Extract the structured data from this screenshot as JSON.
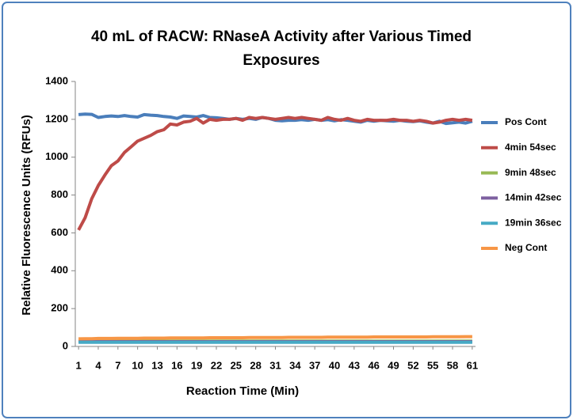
{
  "chart_data": {
    "type": "line",
    "title": "40 mL of RACW: RNaseA Activity after Various Timed Exposures",
    "x_label": "Reaction Time (Min)",
    "y_label": "Relative Fluorescence Units (RFUs)",
    "x": [
      1,
      2,
      3,
      4,
      5,
      6,
      7,
      8,
      9,
      10,
      11,
      12,
      13,
      14,
      15,
      16,
      17,
      18,
      19,
      20,
      21,
      22,
      23,
      24,
      25,
      26,
      27,
      28,
      29,
      30,
      31,
      32,
      33,
      34,
      35,
      36,
      37,
      38,
      39,
      40,
      41,
      42,
      43,
      44,
      45,
      46,
      47,
      48,
      49,
      50,
      51,
      52,
      53,
      54,
      55,
      56,
      57,
      58,
      59,
      60,
      61
    ],
    "xlim": [
      0.5,
      61.5
    ],
    "xticks": [
      1,
      4,
      7,
      10,
      13,
      16,
      19,
      22,
      25,
      28,
      31,
      34,
      37,
      40,
      43,
      46,
      49,
      52,
      55,
      58,
      61
    ],
    "ylim": [
      0,
      1400
    ],
    "yticks": [
      0,
      200,
      400,
      600,
      800,
      1000,
      1200,
      1400
    ],
    "grid": false,
    "legend": "right",
    "series": [
      {
        "name": "Pos Cont",
        "color": "#4a7ebb",
        "values": [
          1225,
          1228,
          1226,
          1210,
          1215,
          1218,
          1215,
          1220,
          1215,
          1212,
          1225,
          1222,
          1220,
          1215,
          1212,
          1205,
          1218,
          1215,
          1212,
          1220,
          1210,
          1208,
          1205,
          1200,
          1205,
          1200,
          1205,
          1200,
          1210,
          1205,
          1195,
          1192,
          1195,
          1195,
          1198,
          1195,
          1200,
          1195,
          1198,
          1192,
          1198,
          1195,
          1190,
          1185,
          1195,
          1190,
          1195,
          1192,
          1190,
          1195,
          1190,
          1188,
          1192,
          1185,
          1180,
          1190,
          1178,
          1182,
          1185,
          1180,
          1190
        ]
      },
      {
        "name": "4min 54sec",
        "color": "#be4b48",
        "values": [
          615,
          680,
          780,
          850,
          905,
          955,
          980,
          1025,
          1055,
          1085,
          1100,
          1115,
          1135,
          1145,
          1175,
          1170,
          1185,
          1190,
          1205,
          1180,
          1200,
          1195,
          1200,
          1200,
          1205,
          1195,
          1210,
          1205,
          1210,
          1205,
          1200,
          1205,
          1210,
          1205,
          1210,
          1205,
          1200,
          1195,
          1210,
          1200,
          1195,
          1205,
          1195,
          1190,
          1200,
          1195,
          1195,
          1195,
          1200,
          1195,
          1195,
          1190,
          1195,
          1190,
          1180,
          1185,
          1195,
          1200,
          1195,
          1200,
          1195
        ]
      },
      {
        "name": "9min 48sec",
        "color": "#98b954",
        "values": [
          28,
          28,
          28,
          28,
          28,
          28,
          28,
          28,
          28,
          28,
          28,
          28,
          28,
          28,
          28,
          28,
          28,
          28,
          28,
          28,
          28,
          28,
          28,
          28,
          28,
          28,
          28,
          28,
          28,
          28,
          28,
          28,
          28,
          28,
          28,
          28,
          28,
          28,
          28,
          28,
          28,
          28,
          28,
          28,
          28,
          28,
          28,
          28,
          28,
          28,
          28,
          28,
          28,
          28,
          28,
          28,
          28,
          28,
          28,
          28,
          28
        ]
      },
      {
        "name": "14min 42sec",
        "color": "#7d60a0",
        "values": [
          25,
          25,
          25,
          25,
          25,
          25,
          25,
          25,
          25,
          25,
          25,
          25,
          25,
          25,
          25,
          25,
          25,
          25,
          25,
          25,
          25,
          25,
          25,
          25,
          25,
          25,
          25,
          25,
          25,
          25,
          25,
          25,
          25,
          25,
          25,
          25,
          25,
          25,
          25,
          25,
          25,
          25,
          25,
          25,
          25,
          25,
          25,
          25,
          25,
          25,
          25,
          25,
          25,
          25,
          25,
          25,
          25,
          25,
          25,
          25,
          25
        ]
      },
      {
        "name": "19min 36sec",
        "color": "#46aac5",
        "values": [
          22,
          22,
          22,
          22,
          22,
          22,
          22,
          22,
          22,
          22,
          22,
          22,
          22,
          22,
          22,
          22,
          22,
          22,
          22,
          22,
          22,
          22,
          22,
          22,
          22,
          22,
          22,
          22,
          22,
          22,
          22,
          22,
          22,
          22,
          22,
          22,
          22,
          22,
          22,
          22,
          22,
          22,
          22,
          22,
          22,
          22,
          22,
          22,
          22,
          22,
          22,
          22,
          22,
          22,
          22,
          22,
          22,
          22,
          22,
          22,
          22
        ]
      },
      {
        "name": "Neg Cont",
        "color": "#f79646",
        "values": [
          40,
          41,
          41,
          42,
          42,
          42,
          43,
          43,
          43,
          43,
          44,
          44,
          44,
          44,
          45,
          45,
          45,
          45,
          45,
          45,
          46,
          46,
          46,
          46,
          46,
          46,
          47,
          47,
          47,
          47,
          47,
          47,
          48,
          48,
          48,
          48,
          48,
          48,
          49,
          49,
          49,
          49,
          49,
          49,
          49,
          50,
          50,
          50,
          50,
          50,
          50,
          50,
          50,
          50,
          51,
          51,
          51,
          51,
          51,
          52,
          52
        ]
      }
    ]
  }
}
